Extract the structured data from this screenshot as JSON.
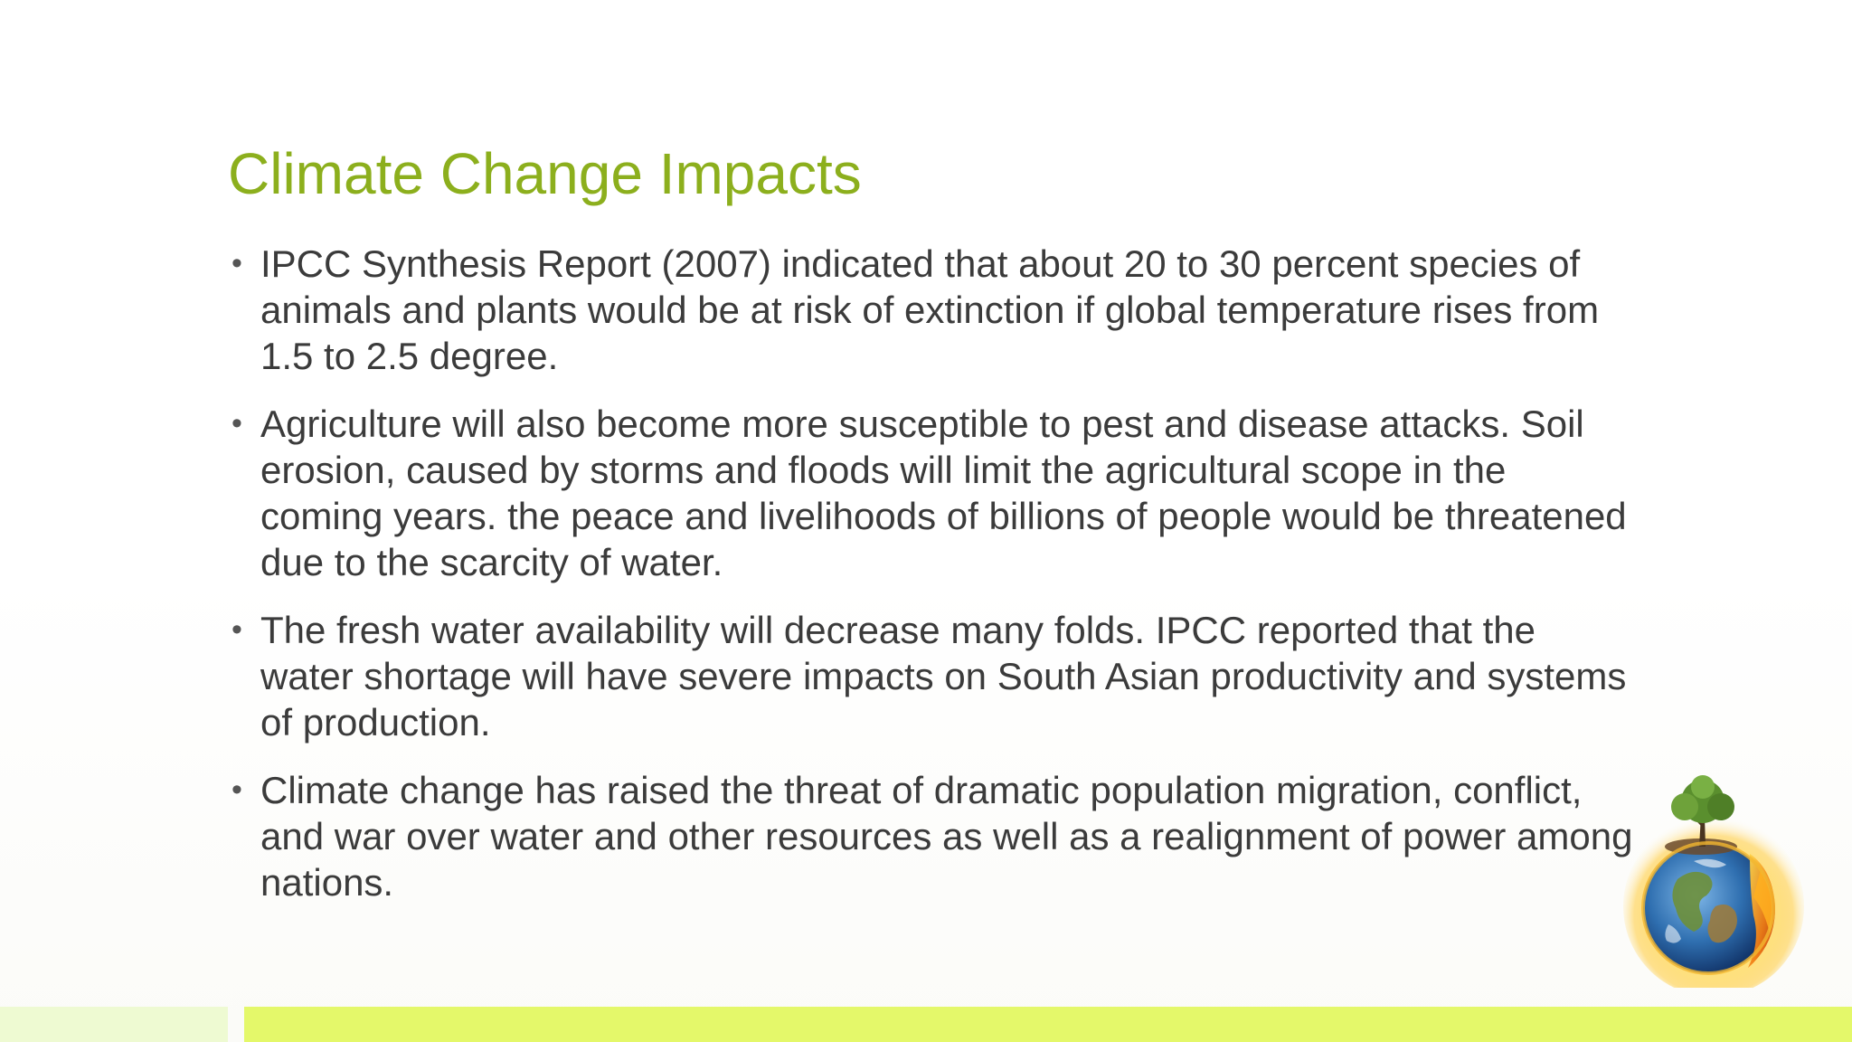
{
  "slide": {
    "title": "Climate Change Impacts",
    "bullets": [
      "IPCC Synthesis Report (2007) indicated that about 20 to 30 percent species of animals and plants would be at risk of extinction if global temperature rises from 1.5 to 2.5 degree.",
      "Agriculture will also become more susceptible to pest and disease attacks. Soil erosion, caused by storms and floods will limit the agricultural scope in the coming years. the peace and livelihoods of billions of people would be threatened due to the scarcity of water.",
      "The fresh water availability will decrease many folds. IPCC reported that the water shortage will have severe impacts on South Asian productivity and systems of production.",
      "Climate change has raised the threat of dramatic population migration, conflict, and war over water and other resources as well as a realignment of power among nations."
    ]
  },
  "colors": {
    "title": "#8caf1d",
    "body_text": "#3b3b3b",
    "bar_light": "#eefad2",
    "bar_accent": "#e4f86a"
  },
  "icons": {
    "globe": "earth-tree-fire-globe-icon",
    "bullet": "bullet-dot"
  }
}
